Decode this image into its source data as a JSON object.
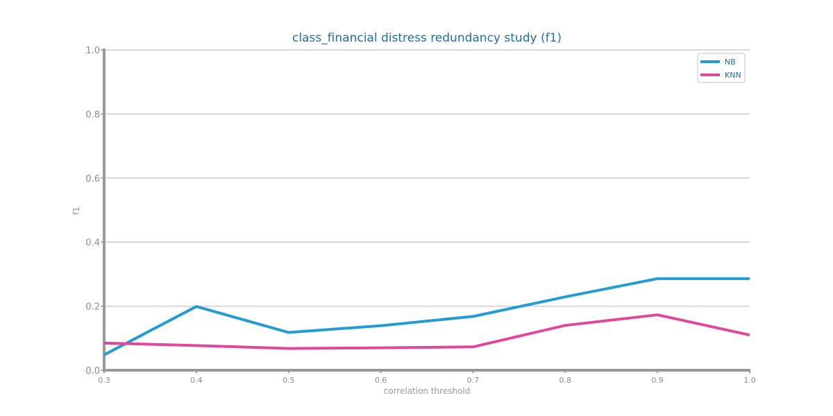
{
  "chart_data": {
    "type": "line",
    "title": "class_financial distress redundancy study (f1)",
    "xlabel": "correlation threshold",
    "ylabel": "f1",
    "x": [
      0.3,
      0.4,
      0.5,
      0.6,
      0.7,
      0.8,
      0.9,
      1.0
    ],
    "x_tick_labels": [
      "0.3",
      "0.4",
      "0.5",
      "0.6",
      "0.7",
      "0.8",
      "0.9",
      "1.0"
    ],
    "y_tick_labels": [
      "0.0",
      "0.2",
      "0.4",
      "0.6",
      "0.8",
      "1.0"
    ],
    "y_ticks": [
      0.0,
      0.2,
      0.4,
      0.6,
      0.8,
      1.0
    ],
    "xlim": [
      0.3,
      1.0
    ],
    "ylim": [
      0.0,
      1.0
    ],
    "grid": "horizontal",
    "legend_position": "top-right",
    "series": [
      {
        "name": "NB",
        "color": "#239dd1",
        "values": [
          0.048,
          0.199,
          0.118,
          0.139,
          0.168,
          0.229,
          0.286,
          0.286
        ]
      },
      {
        "name": "KNN",
        "color": "#e0489b",
        "values": [
          0.085,
          0.077,
          0.068,
          0.07,
          0.073,
          0.14,
          0.173,
          0.11
        ]
      }
    ],
    "colors": {
      "title": "#1f6f9f",
      "axis": "#999999",
      "grid": "#cccccc",
      "tick_text": "#8c8c8c",
      "legend_text": "#1f6f9f"
    }
  }
}
